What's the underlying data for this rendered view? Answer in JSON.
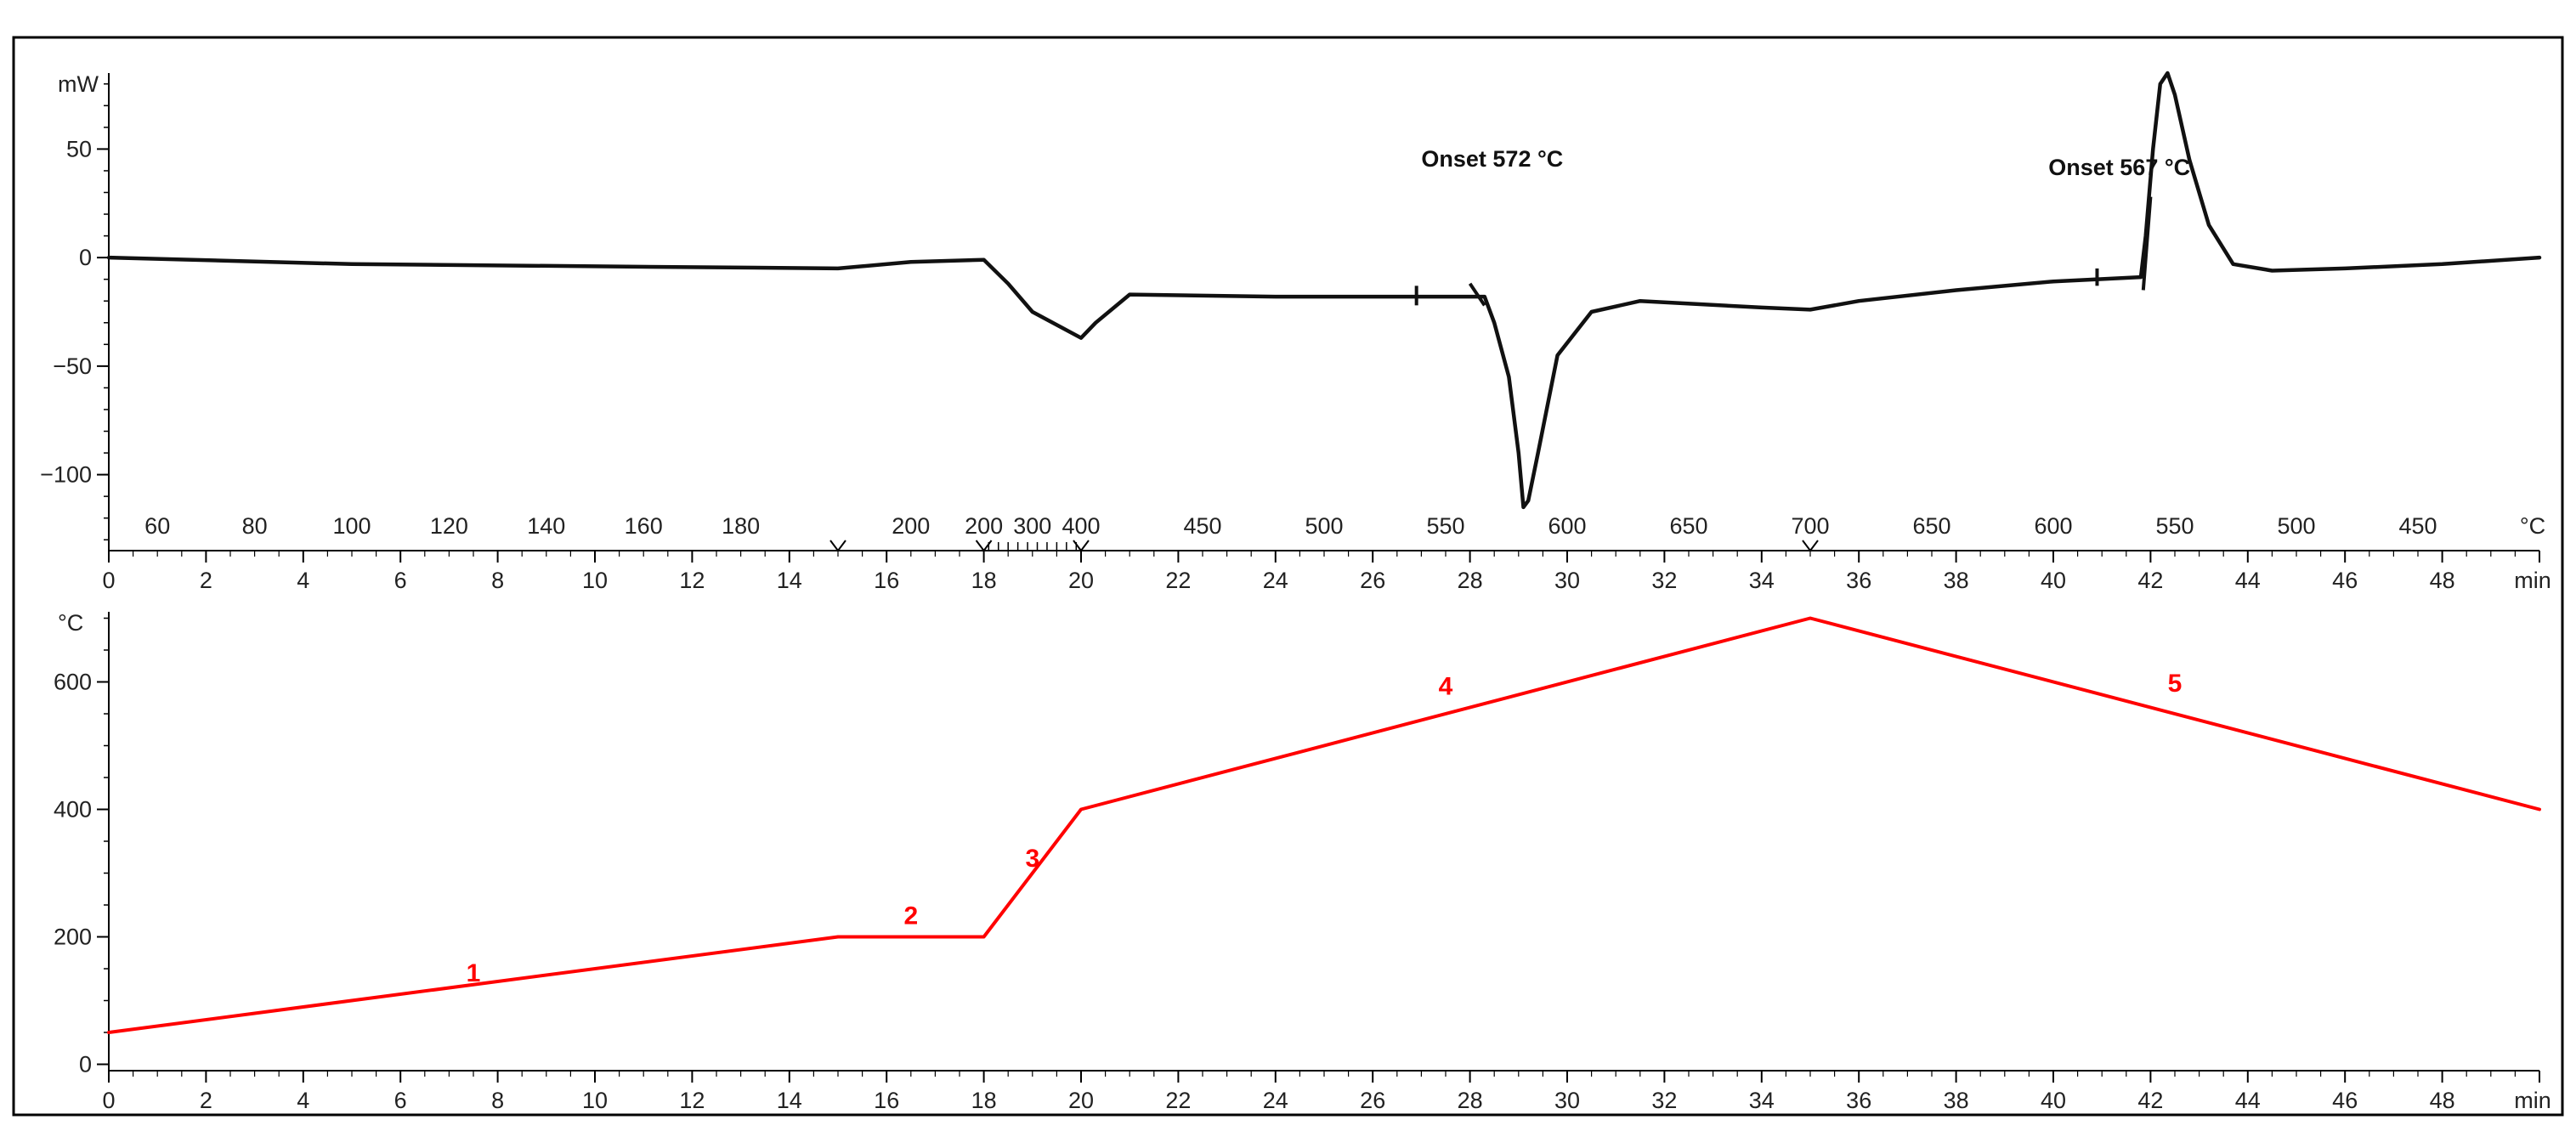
{
  "chart_data": [
    {
      "id": "dsc",
      "type": "line",
      "ylabel": "mW",
      "xlabel": "min",
      "ylim": [
        -135,
        85
      ],
      "xlim": [
        0,
        50
      ],
      "yticks": [
        50,
        0,
        -50,
        -100
      ],
      "xticks": [
        0,
        2,
        4,
        6,
        8,
        10,
        12,
        14,
        16,
        18,
        20,
        22,
        24,
        26,
        28,
        30,
        32,
        34,
        36,
        38,
        40,
        42,
        44,
        46,
        48
      ],
      "temp_axis": {
        "unit": "°C",
        "labels": [
          {
            "t": 1.0,
            "label": "60"
          },
          {
            "t": 3.0,
            "label": "80"
          },
          {
            "t": 5.0,
            "label": "100"
          },
          {
            "t": 7.0,
            "label": "120"
          },
          {
            "t": 9.0,
            "label": "140"
          },
          {
            "t": 11.0,
            "label": "160"
          },
          {
            "t": 13.0,
            "label": "180"
          },
          {
            "t": 16.5,
            "label": "200"
          },
          {
            "t": 18.0,
            "label": "200"
          },
          {
            "t": 19.0,
            "label": "300"
          },
          {
            "t": 20.0,
            "label": "400"
          },
          {
            "t": 22.5,
            "label": "450"
          },
          {
            "t": 25.0,
            "label": "500"
          },
          {
            "t": 27.5,
            "label": "550"
          },
          {
            "t": 30.0,
            "label": "600"
          },
          {
            "t": 32.5,
            "label": "650"
          },
          {
            "t": 35.0,
            "label": "700"
          },
          {
            "t": 37.5,
            "label": "650"
          },
          {
            "t": 40.0,
            "label": "600"
          },
          {
            "t": 42.5,
            "label": "550"
          },
          {
            "t": 45.0,
            "label": "500"
          },
          {
            "t": 47.5,
            "label": "450"
          }
        ],
        "segment_marks": [
          15,
          18,
          20,
          35
        ]
      },
      "annotations": [
        {
          "text": "Onset 572 °C",
          "x": 27.0,
          "y": 42
        },
        {
          "text": "Onset 567 °C",
          "x": 39.9,
          "y": 38
        }
      ],
      "series": [
        {
          "color": "#111111",
          "x": [
            0,
            5,
            10,
            15,
            16.5,
            18,
            18.5,
            19,
            20,
            20.3,
            21,
            24,
            27,
            28.3,
            28.5,
            28.8,
            29.0,
            29.1,
            29.2,
            29.4,
            29.8,
            30.5,
            31.5,
            34,
            35,
            36,
            38,
            40,
            41.8,
            41.9,
            42.05,
            42.2,
            42.35,
            42.5,
            42.8,
            43.2,
            43.7,
            44.5,
            46,
            48,
            50
          ],
          "y": [
            0,
            -3,
            -4,
            -5,
            -2,
            -1,
            -12,
            -25,
            -37,
            -30,
            -17,
            -18,
            -18,
            -18,
            -30,
            -55,
            -90,
            -115,
            -112,
            -90,
            -45,
            -25,
            -20,
            -23,
            -24,
            -20,
            -15,
            -11,
            -9,
            10,
            50,
            80,
            85,
            75,
            45,
            15,
            -3,
            -6,
            -5,
            -3,
            0
          ]
        }
      ]
    },
    {
      "id": "temperature",
      "type": "line",
      "ylabel": "°C",
      "xlabel": "min",
      "ylim": [
        -10,
        710
      ],
      "xlim": [
        0,
        50
      ],
      "yticks": [
        0,
        200,
        400,
        600
      ],
      "xticks": [
        0,
        2,
        4,
        6,
        8,
        10,
        12,
        14,
        16,
        18,
        20,
        22,
        24,
        26,
        28,
        30,
        32,
        34,
        36,
        38,
        40,
        42,
        44,
        46,
        48
      ],
      "segment_labels": [
        {
          "text": "1",
          "x": 7.5,
          "y": 130
        },
        {
          "text": "2",
          "x": 16.5,
          "y": 220
        },
        {
          "text": "3",
          "x": 19.0,
          "y": 310
        },
        {
          "text": "4",
          "x": 27.5,
          "y": 580
        },
        {
          "text": "5",
          "x": 42.5,
          "y": 585
        }
      ],
      "series": [
        {
          "color": "#ff0000",
          "x": [
            0,
            15,
            18,
            20,
            35,
            50
          ],
          "y": [
            50,
            200,
            200,
            400,
            700,
            400
          ]
        }
      ]
    }
  ]
}
